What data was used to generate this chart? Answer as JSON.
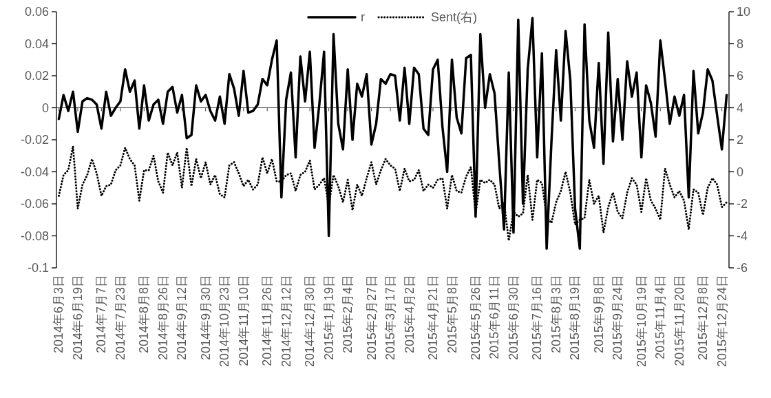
{
  "chart_data": {
    "type": "line",
    "legend": "top",
    "categories": [
      "2014年6月3日",
      null,
      null,
      null,
      "2014年6月19日",
      null,
      null,
      null,
      null,
      "2014年7月7日",
      null,
      null,
      null,
      "2014年7月23日",
      null,
      null,
      null,
      null,
      "2014年8月8日",
      null,
      null,
      null,
      "2014年8月26日",
      null,
      null,
      null,
      "2014年9月12日",
      null,
      null,
      null,
      null,
      "2014年9月30日",
      null,
      null,
      null,
      "2014年10月23日",
      null,
      null,
      null,
      "2014年11月10日",
      null,
      null,
      null,
      null,
      "2014年11月26日",
      null,
      null,
      null,
      "2014年12月12日",
      null,
      null,
      null,
      null,
      "2014年12月30日",
      null,
      null,
      null,
      "2015年1月19日",
      null,
      null,
      null,
      "2015年2月4日",
      null,
      null,
      null,
      null,
      "2015年2月27日",
      null,
      null,
      null,
      "2015年3月17日",
      null,
      null,
      null,
      "2015年4月2日",
      null,
      null,
      null,
      null,
      "2015年4月21日",
      null,
      null,
      null,
      "2015年5月8日",
      null,
      null,
      null,
      null,
      "2015年5月26日",
      null,
      null,
      null,
      "2015年6月11日",
      null,
      null,
      null,
      "2015年6月30日",
      null,
      null,
      null,
      null,
      "2015年7月16日",
      null,
      null,
      null,
      "2015年8月3日",
      null,
      null,
      null,
      "2015年8月19日",
      null,
      null,
      null,
      null,
      "2015年9月8日",
      null,
      null,
      null,
      "2015年9月24日",
      null,
      null,
      null,
      null,
      "2015年10月19日",
      null,
      null,
      null,
      "2015年11月4日",
      null,
      null,
      null,
      "2015年11月20日",
      null,
      null,
      null,
      null,
      "2015年12月8日",
      null,
      null,
      null,
      "2015年12月24日",
      null
    ],
    "ylim": [
      -0.1,
      0.06
    ],
    "yticks": [
      -0.1,
      -0.08,
      -0.06,
      -0.04,
      -0.02,
      0,
      0.02,
      0.04,
      0.06
    ],
    "y2lim": [
      -6,
      10
    ],
    "y2ticks": [
      -6,
      -4,
      -2,
      0,
      2,
      4,
      6,
      8,
      10
    ],
    "series": [
      {
        "name": "r",
        "color": "#000000",
        "line_style": "solid",
        "values": [
          -0.007,
          0.008,
          -0.002,
          0.01,
          -0.015,
          0.004,
          0.006,
          0.005,
          0.002,
          -0.013,
          0.01,
          -0.005,
          0.0,
          0.004,
          0.024,
          0.01,
          0.017,
          -0.013,
          0.014,
          -0.008,
          0.002,
          0.005,
          -0.01,
          0.01,
          0.013,
          -0.003,
          0.008,
          -0.019,
          -0.017,
          0.014,
          0.004,
          0.008,
          -0.002,
          -0.008,
          0.007,
          -0.01,
          0.021,
          0.012,
          -0.005,
          0.023,
          -0.003,
          -0.002,
          0.002,
          0.018,
          0.014,
          0.03,
          0.042,
          -0.056,
          0.005,
          0.022,
          -0.031,
          0.032,
          0.004,
          0.035,
          -0.025,
          0.002,
          0.035,
          -0.08,
          0.046,
          -0.01,
          -0.026,
          0.024,
          -0.02,
          0.015,
          0.007,
          0.021,
          -0.023,
          -0.01,
          0.018,
          0.015,
          0.021,
          0.02,
          -0.008,
          0.025,
          -0.01,
          0.025,
          0.021,
          -0.013,
          -0.017,
          0.024,
          0.03,
          -0.012,
          -0.04,
          0.03,
          -0.006,
          -0.016,
          0.031,
          0.033,
          -0.068,
          0.046,
          0.0,
          0.021,
          0.009,
          -0.035,
          -0.076,
          0.022,
          -0.078,
          0.055,
          -0.06,
          0.024,
          0.056,
          -0.031,
          0.034,
          -0.088,
          -0.022,
          0.036,
          -0.008,
          0.048,
          0.017,
          -0.063,
          -0.088,
          0.052,
          -0.008,
          -0.025,
          0.028,
          -0.035,
          0.047,
          -0.021,
          0.018,
          -0.02,
          0.029,
          0.007,
          0.022,
          -0.031,
          0.014,
          0.003,
          -0.018,
          0.042,
          0.017,
          -0.01,
          0.007,
          -0.005,
          0.008,
          -0.056,
          0.023,
          -0.016,
          -0.003,
          0.024,
          0.017,
          -0.005,
          -0.026,
          0.008
        ]
      },
      {
        "name": "Sent(右)",
        "color": "#000000",
        "line_style": "dotted",
        "axis": "y2",
        "values": [
          -1.5,
          -0.2,
          0.1,
          1.6,
          -2.3,
          -0.8,
          -0.2,
          0.8,
          -0.1,
          -1.5,
          -0.9,
          -0.8,
          0.1,
          0.4,
          1.5,
          0.8,
          0.4,
          -1.8,
          0.1,
          0.1,
          1.0,
          -0.6,
          -1.3,
          1.2,
          0.4,
          1.2,
          -1.0,
          1.5,
          -0.9,
          0.8,
          -0.4,
          0.6,
          -0.8,
          -0.2,
          -1.4,
          -1.6,
          0.4,
          0.6,
          -0.1,
          -0.9,
          -0.5,
          -1.1,
          -0.8,
          0.9,
          -0.1,
          0.8,
          -0.6,
          -0.6,
          -0.2,
          -0.1,
          -1.2,
          -0.2,
          0.0,
          0.7,
          -1.1,
          -0.8,
          -0.4,
          -2.1,
          -0.2,
          -0.9,
          -1.9,
          -0.5,
          -2.4,
          -0.8,
          -1.5,
          -0.4,
          0.6,
          -0.8,
          0.1,
          0.8,
          0.4,
          0.2,
          -1.2,
          0.2,
          -0.6,
          -0.5,
          0.1,
          -1.2,
          -0.8,
          -1.0,
          -0.5,
          -0.4,
          -2.3,
          -0.2,
          -1.2,
          -1.3,
          -0.3,
          0.3,
          -2.6,
          -0.5,
          -0.7,
          -0.5,
          -0.8,
          -2.3,
          -1.9,
          -4.3,
          -2.5,
          -2.8,
          -2.6,
          -0.2,
          -3.0,
          -0.5,
          -0.7,
          -2.8,
          -3.2,
          -1.9,
          -1.2,
          0.0,
          -1.3,
          -3.3,
          -3.0,
          -2.9,
          -0.5,
          -2.0,
          -1.5,
          -3.8,
          -2.2,
          -1.3,
          -2.5,
          -2.9,
          -1.3,
          -0.4,
          -0.8,
          -2.5,
          -0.4,
          -1.8,
          -2.3,
          -3.0,
          0.2,
          -0.8,
          -1.6,
          -1.2,
          -1.8,
          -3.6,
          -1.1,
          -1.3,
          -2.7,
          -1.0,
          -0.4,
          -0.8,
          -2.2,
          -1.9
        ]
      }
    ]
  }
}
